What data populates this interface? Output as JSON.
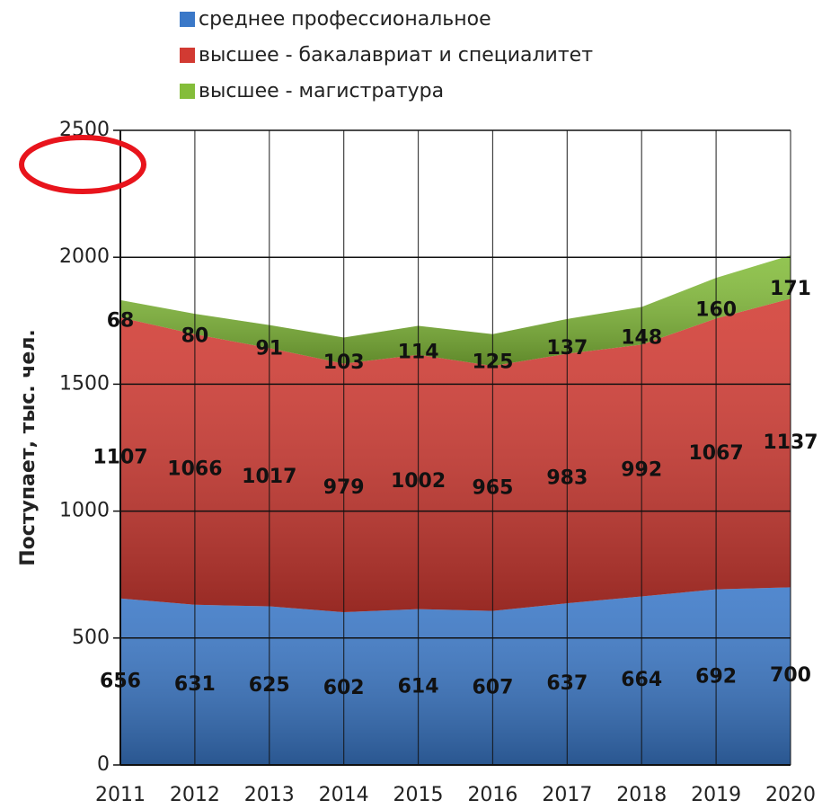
{
  "chart_data": {
    "type": "stacked_area",
    "ylabel": "Поступает, тыс. чел.",
    "categories": [
      "2011",
      "2012",
      "2013",
      "2014",
      "2015",
      "2016",
      "2017",
      "2018",
      "2019",
      "2020"
    ],
    "series": [
      {
        "name": "среднее профессиональное",
        "color": "#3a78c8",
        "values": [
          656,
          631,
          625,
          602,
          614,
          607,
          637,
          664,
          692,
          700
        ]
      },
      {
        "name": "высшее - бакалавриат и специалитет",
        "color": "#d23a32",
        "values": [
          1107,
          1066,
          1017,
          979,
          1002,
          965,
          983,
          992,
          1067,
          1137
        ]
      },
      {
        "name": "высшее - магистратура",
        "color": "#84bd3a",
        "values": [
          68,
          80,
          91,
          103,
          114,
          125,
          137,
          148,
          160,
          171
        ]
      }
    ],
    "ylim": [
      0,
      2500
    ],
    "yticks": [
      0,
      500,
      1000,
      1500,
      2000,
      2500
    ],
    "grid": true
  }
}
